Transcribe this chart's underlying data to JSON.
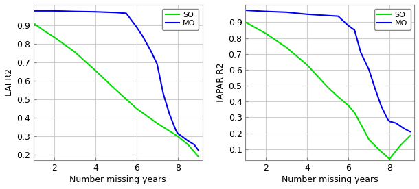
{
  "left_ylabel": "LAI R2",
  "right_ylabel": "fAPAR R2",
  "xlabel": "Number missing years",
  "so_color": "#00DD00",
  "mo_color": "#0000EE",
  "linewidth": 1.5,
  "left_xlim": [
    1,
    9.2
  ],
  "right_xlim": [
    1,
    9.2
  ],
  "left_ylim": [
    0.17,
    1.01
  ],
  "right_ylim": [
    0.03,
    1.01
  ],
  "left_yticks": [
    0.2,
    0.3,
    0.4,
    0.5,
    0.6,
    0.7,
    0.8,
    0.9
  ],
  "right_yticks": [
    0.1,
    0.2,
    0.3,
    0.4,
    0.5,
    0.6,
    0.7,
    0.8,
    0.9
  ],
  "xticks": [
    2,
    4,
    6,
    8
  ],
  "left_SO_x": [
    1.0,
    1.5,
    2.0,
    3.0,
    4.0,
    5.0,
    6.0,
    7.0,
    8.0,
    8.5,
    9.0
  ],
  "left_SO_y": [
    0.91,
    0.87,
    0.835,
    0.755,
    0.655,
    0.55,
    0.45,
    0.37,
    0.3,
    0.255,
    0.19
  ],
  "left_MO_x": [
    1.0,
    2.0,
    3.0,
    4.0,
    5.0,
    5.5,
    6.0,
    6.3,
    6.7,
    7.0,
    7.3,
    7.6,
    7.9,
    8.0,
    8.2,
    8.5,
    8.8,
    9.0
  ],
  "left_MO_y": [
    0.977,
    0.977,
    0.974,
    0.972,
    0.968,
    0.964,
    0.89,
    0.84,
    0.76,
    0.69,
    0.53,
    0.42,
    0.335,
    0.315,
    0.3,
    0.275,
    0.255,
    0.225
  ],
  "right_SO_x": [
    1.0,
    2.0,
    3.0,
    4.0,
    5.0,
    5.5,
    6.0,
    6.3,
    6.8,
    7.0,
    7.5,
    8.0,
    8.5,
    9.0
  ],
  "right_SO_y": [
    0.9,
    0.828,
    0.74,
    0.63,
    0.49,
    0.43,
    0.375,
    0.33,
    0.21,
    0.16,
    0.095,
    0.038,
    0.12,
    0.185
  ],
  "right_MO_x": [
    1.0,
    2.0,
    3.0,
    4.0,
    5.0,
    5.5,
    6.0,
    6.3,
    6.6,
    7.0,
    7.3,
    7.6,
    7.9,
    8.0,
    8.3,
    8.7,
    9.0
  ],
  "right_MO_y": [
    0.975,
    0.968,
    0.963,
    0.95,
    0.942,
    0.938,
    0.878,
    0.85,
    0.71,
    0.6,
    0.48,
    0.37,
    0.29,
    0.275,
    0.265,
    0.23,
    0.21
  ],
  "legend_labels": [
    "SO",
    "MO"
  ],
  "bg_color": "#ffffff",
  "grid_color": "#d0d0d0",
  "font_size": 9,
  "tick_font_size": 9
}
